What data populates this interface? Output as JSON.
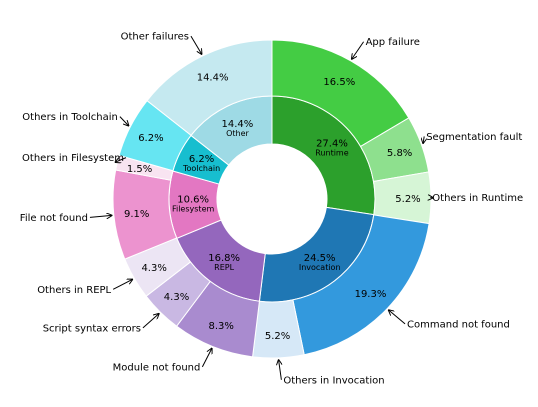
{
  "chart_data": {
    "type": "pie",
    "subtype": "nested-donut",
    "title": "",
    "inner": [
      {
        "name": "Runtime",
        "value": 27.4,
        "label": "27.4%",
        "color": "#2ca02c"
      },
      {
        "name": "Invocation",
        "value": 24.5,
        "label": "24.5%",
        "color": "#1f77b4"
      },
      {
        "name": "REPL",
        "value": 16.8,
        "label": "16.8%",
        "color": "#9467bd"
      },
      {
        "name": "Filesystem",
        "value": 10.6,
        "label": "10.6%",
        "color": "#e377c2"
      },
      {
        "name": "Toolchain",
        "value": 6.2,
        "label": "6.2%",
        "color": "#17becf"
      },
      {
        "name": "Other",
        "value": 14.4,
        "label": "14.4%",
        "color": "#9edae5"
      }
    ],
    "outer": [
      {
        "name": "App failure",
        "value": 16.5,
        "label": "16.5%",
        "color": "#44cc44"
      },
      {
        "name": "Segmentation fault",
        "value": 5.8,
        "label": "5.8%",
        "color": "#8ee08e"
      },
      {
        "name": "Others in Runtime",
        "value": 5.2,
        "label": "5.2%",
        "color": "#d6f5d6"
      },
      {
        "name": "Command not found",
        "value": 19.3,
        "label": "19.3%",
        "color": "#3399dd"
      },
      {
        "name": "Others in Invocation",
        "value": 5.2,
        "label": "5.2%",
        "color": "#d6e8f7"
      },
      {
        "name": "Module not found",
        "value": 8.3,
        "label": "8.3%",
        "color": "#a98bcf"
      },
      {
        "name": "Script syntax errors",
        "value": 4.3,
        "label": "4.3%",
        "color": "#c9b8e3"
      },
      {
        "name": "Others in REPL",
        "value": 4.3,
        "label": "4.3%",
        "color": "#ece5f4"
      },
      {
        "name": "File not found",
        "value": 9.1,
        "label": "9.1%",
        "color": "#ec93cf"
      },
      {
        "name": "Others in Filesystem",
        "value": 1.5,
        "label": "1.5%",
        "color": "#f8e4f1"
      },
      {
        "name": "Others in Toolchain",
        "value": 6.2,
        "label": "6.2%",
        "color": "#66e5f2"
      },
      {
        "name": "Other failures",
        "value": 14.4,
        "label": "14.4%",
        "color": "#c5e9f0"
      }
    ]
  }
}
